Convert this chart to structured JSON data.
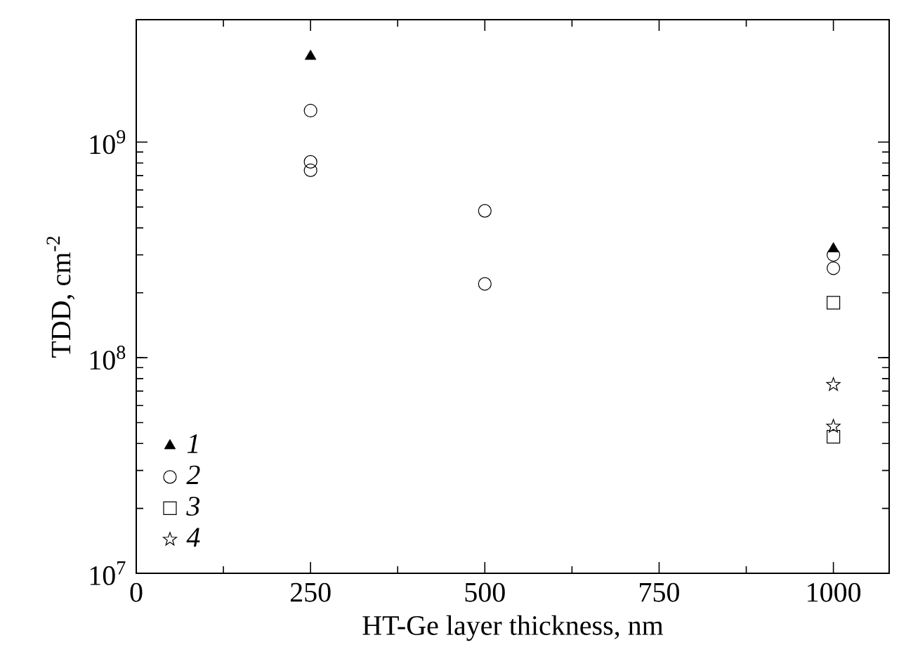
{
  "chart_data": {
    "type": "scatter",
    "xlabel": "HT-Ge layer thickness, nm",
    "ylabel": "TDD, cm$^{-2}$",
    "log": "y",
    "grid": false,
    "legend": "bottom left",
    "xlim": [
      0,
      1080
    ],
    "ylim": [
      10000000,
      3700000000
    ],
    "xticks": [
      0,
      250,
      500,
      750,
      1000
    ],
    "yticks": [
      {
        "value": 10000000,
        "label": "10$^{7}$"
      },
      {
        "value": 100000000,
        "label": "10$^{8}$"
      },
      {
        "value": 1000000000,
        "label": "10$^{9}$"
      }
    ],
    "series": [
      {
        "name": "1",
        "color": "#000000",
        "marker": "triangle",
        "x": [
          250,
          1000
        ],
        "values": [
          2500000000,
          320000000
        ]
      },
      {
        "name": "2",
        "color": "#000000",
        "marker": "circle",
        "x": [
          250,
          250,
          250,
          500,
          500,
          1000,
          1000
        ],
        "values": [
          1400000000,
          810000000,
          740000000,
          480000000,
          220000000,
          300000000,
          260000000
        ]
      },
      {
        "name": "3",
        "color": "#000000",
        "marker": "square",
        "x": [
          1000,
          1000
        ],
        "values": [
          180000000,
          43000000
        ]
      },
      {
        "name": "4",
        "color": "#000000",
        "marker": "star",
        "x": [
          1000,
          1000
        ],
        "values": [
          75000000,
          48000000
        ]
      }
    ]
  }
}
